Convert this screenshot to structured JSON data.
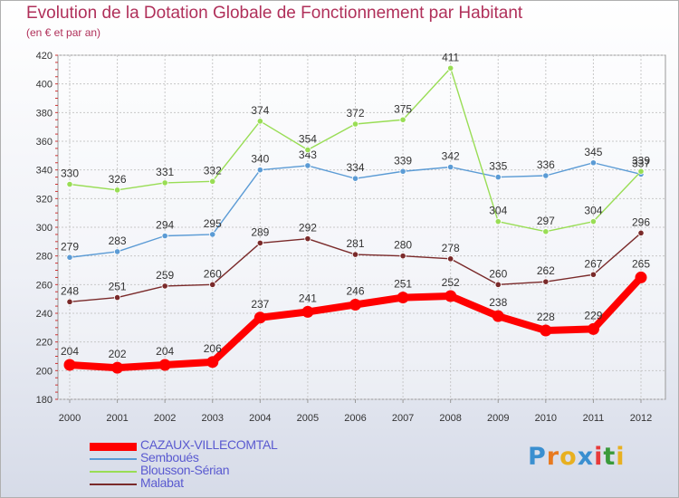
{
  "header": {
    "title": "Evolution de la Dotation Globale de Fonctionnement par Habitant",
    "subtitle": "(en € et par an)"
  },
  "brand": {
    "letters": [
      "P",
      "r",
      "o",
      "x",
      "i",
      "t",
      "i"
    ],
    "colors": [
      "#3a8fd0",
      "#e87a20",
      "#e8b020",
      "#3a8fd0",
      "#e83a3a",
      "#3a9a3a",
      "#e8b020"
    ]
  },
  "chart_data": {
    "type": "line",
    "title": "Evolution de la Dotation Globale de Fonctionnement par Habitant",
    "subtitle": "(en € et par an)",
    "categories": [
      "2000",
      "2001",
      "2002",
      "2003",
      "2004",
      "2005",
      "2006",
      "2007",
      "2008",
      "2009",
      "2010",
      "2011",
      "2012"
    ],
    "ylim": [
      180,
      420
    ],
    "yticks": [
      180,
      200,
      220,
      240,
      260,
      280,
      300,
      320,
      340,
      360,
      380,
      400,
      420
    ],
    "grid": true,
    "legend_position": "bottom-left",
    "series": [
      {
        "name": "CAZAUX-VILLECOMTAL",
        "color": "#ff0000",
        "bold": true,
        "values": [
          204,
          202,
          204,
          206,
          237,
          241,
          246,
          251,
          252,
          238,
          228,
          229,
          265
        ]
      },
      {
        "name": "Semboués",
        "color": "#5b9bd5",
        "bold": false,
        "values": [
          279,
          283,
          294,
          295,
          340,
          343,
          334,
          339,
          342,
          335,
          336,
          345,
          337
        ]
      },
      {
        "name": "Blousson-Sérian",
        "color": "#99dd55",
        "bold": false,
        "values": [
          330,
          326,
          331,
          332,
          374,
          354,
          372,
          375,
          411,
          304,
          297,
          304,
          339
        ]
      },
      {
        "name": "Malabat",
        "color": "#7a2a2a",
        "bold": false,
        "values": [
          248,
          251,
          259,
          260,
          289,
          292,
          281,
          280,
          278,
          260,
          262,
          267,
          296
        ]
      }
    ]
  }
}
